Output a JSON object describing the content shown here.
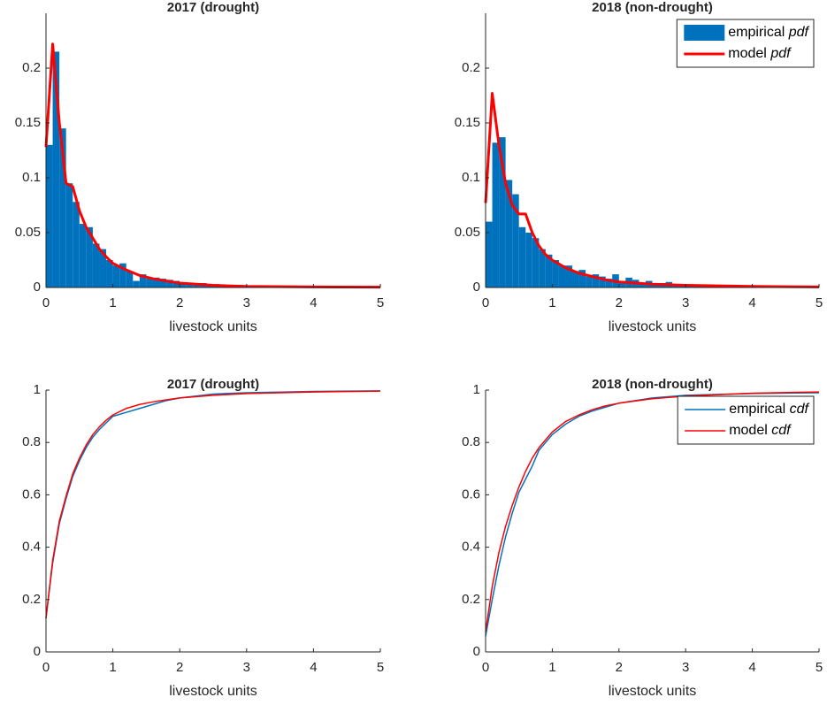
{
  "chart_data": [
    {
      "type": "histogram",
      "title": "2017 (drought)",
      "xlabel": "livestock units",
      "xlim": [
        0,
        5
      ],
      "xticks": [
        0,
        1,
        2,
        3,
        4,
        5
      ],
      "ylim": [
        0,
        0.25
      ],
      "yticks": [
        0,
        0.05,
        0.1,
        0.15,
        0.2
      ],
      "bins": [
        0,
        0.1,
        0.2,
        0.3,
        0.4,
        0.5,
        0.6,
        0.7,
        0.8,
        0.9,
        1,
        1.1,
        1.2,
        1.3,
        1.4,
        1.5,
        1.6,
        1.7,
        1.8,
        1.9,
        2,
        2.1,
        2.2,
        2.3,
        2.4,
        2.5,
        2.6,
        2.7,
        2.8,
        2.9,
        3,
        3.1,
        3.2,
        3.3,
        3.4,
        3.5,
        3.6,
        3.7,
        3.8,
        3.9,
        4,
        4.1,
        4.2,
        4.3,
        4.4,
        4.5,
        4.6,
        4.7,
        4.8,
        4.9,
        5
      ],
      "series": [
        {
          "type": "histogram",
          "color": "#0072bd",
          "values": [
            0.13,
            0.215,
            0.145,
            0.095,
            0.078,
            0.058,
            0.055,
            0.04,
            0.035,
            0.025,
            0.02,
            0.022,
            0.015,
            0.006,
            0.012,
            0.008,
            0.009,
            0.008,
            0.007,
            0.006,
            0.004,
            0.004,
            0.004,
            0.004,
            0.003,
            0.003,
            0.002,
            0.002,
            0.002,
            0.002,
            0.001,
            0.001,
            0.001,
            0.001,
            0.001,
            0.001,
            0.001,
            0.001,
            0.001,
            0.001,
            0.0005,
            0.0005,
            0.0005,
            0.0005,
            0.0005,
            0.0005,
            0.0005,
            0.0005,
            0.0005,
            0.0005
          ]
        },
        {
          "type": "line",
          "color": "#ff0000",
          "width": 3,
          "x": [
            0,
            0.1,
            0.2,
            0.3,
            0.4,
            0.5,
            0.6,
            0.7,
            0.8,
            0.9,
            1,
            1.2,
            1.4,
            1.6,
            1.8,
            2,
            2.5,
            3,
            4,
            5
          ],
          "values": [
            0.128,
            0.222,
            0.15,
            0.095,
            0.092,
            0.07,
            0.055,
            0.045,
            0.035,
            0.028,
            0.022,
            0.016,
            0.011,
            0.008,
            0.006,
            0.004,
            0.002,
            0.001,
            0.0005,
            0.0003
          ]
        }
      ]
    },
    {
      "type": "histogram",
      "title": "2018 (non-drought)",
      "xlabel": "livestock units",
      "legend": "northeast",
      "xlim": [
        0,
        5
      ],
      "xticks": [
        0,
        1,
        2,
        3,
        4,
        5
      ],
      "ylim": [
        0,
        0.25
      ],
      "yticks": [
        0,
        0.05,
        0.1,
        0.15,
        0.2
      ],
      "bins": [
        0,
        0.1,
        0.2,
        0.3,
        0.4,
        0.5,
        0.6,
        0.7,
        0.8,
        0.9,
        1,
        1.1,
        1.2,
        1.3,
        1.4,
        1.5,
        1.6,
        1.7,
        1.8,
        1.9,
        2,
        2.1,
        2.2,
        2.3,
        2.4,
        2.5,
        2.6,
        2.7,
        2.8,
        2.9,
        3,
        3.1,
        3.2,
        3.3,
        3.4,
        3.5,
        3.6,
        3.7,
        3.8,
        3.9,
        4,
        4.1,
        4.2,
        4.3,
        4.4,
        4.5,
        4.6,
        4.7,
        4.8,
        4.9,
        5
      ],
      "series": [
        {
          "type": "histogram",
          "name": "empirical pdf",
          "color": "#0072bd",
          "values": [
            0.06,
            0.132,
            0.137,
            0.098,
            0.085,
            0.055,
            0.05,
            0.045,
            0.035,
            0.03,
            0.025,
            0.02,
            0.02,
            0.015,
            0.016,
            0.01,
            0.012,
            0.01,
            0.008,
            0.012,
            0.006,
            0.009,
            0.007,
            0.004,
            0.006,
            0.003,
            0.004,
            0.005,
            0.002,
            0.002,
            0.002,
            0.001,
            0.002,
            0.001,
            0.001,
            0.001,
            0.001,
            0.001,
            0.001,
            0.001,
            0.0005,
            0.0005,
            0.0005,
            0.0005,
            0.0005,
            0.0005,
            0.0005,
            0.0005,
            0.0005,
            0.0005
          ]
        },
        {
          "type": "line",
          "name": "model pdf",
          "color": "#ff0000",
          "width": 3,
          "x": [
            0,
            0.1,
            0.2,
            0.3,
            0.4,
            0.5,
            0.6,
            0.7,
            0.8,
            0.9,
            1,
            1.2,
            1.4,
            1.6,
            1.8,
            2,
            2.5,
            3,
            4,
            5
          ],
          "values": [
            0.077,
            0.177,
            0.13,
            0.095,
            0.075,
            0.067,
            0.067,
            0.05,
            0.038,
            0.03,
            0.025,
            0.018,
            0.013,
            0.01,
            0.007,
            0.005,
            0.003,
            0.002,
            0.001,
            0.0005
          ]
        }
      ]
    },
    {
      "type": "line",
      "title": "2017 (drought)",
      "xlabel": "livestock units",
      "xlim": [
        0,
        5
      ],
      "xticks": [
        0,
        1,
        2,
        3,
        4,
        5
      ],
      "ylim": [
        0,
        1
      ],
      "yticks": [
        0,
        0.2,
        0.4,
        0.6,
        0.8,
        1
      ],
      "series": [
        {
          "type": "line",
          "color": "#0072bd",
          "width": 1.5,
          "x": [
            0,
            0.1,
            0.2,
            0.3,
            0.4,
            0.5,
            0.6,
            0.7,
            0.8,
            0.9,
            1,
            1.2,
            1.4,
            1.6,
            1.8,
            2,
            2.5,
            3,
            4,
            5
          ],
          "values": [
            0.13,
            0.34,
            0.49,
            0.585,
            0.67,
            0.73,
            0.78,
            0.82,
            0.85,
            0.875,
            0.9,
            0.915,
            0.93,
            0.945,
            0.96,
            0.97,
            0.985,
            0.99,
            0.995,
            0.997
          ]
        },
        {
          "type": "line",
          "color": "#ff0000",
          "width": 1.5,
          "x": [
            0,
            0.1,
            0.2,
            0.3,
            0.4,
            0.5,
            0.6,
            0.7,
            0.8,
            0.9,
            1,
            1.2,
            1.4,
            1.6,
            1.8,
            2,
            2.5,
            3,
            4,
            5
          ],
          "values": [
            0.128,
            0.35,
            0.5,
            0.595,
            0.68,
            0.74,
            0.79,
            0.83,
            0.86,
            0.885,
            0.905,
            0.93,
            0.945,
            0.955,
            0.963,
            0.97,
            0.98,
            0.987,
            0.993,
            0.996
          ]
        }
      ]
    },
    {
      "type": "line",
      "title": "2018 (non-drought)",
      "xlabel": "livestock units",
      "legend": "northeast",
      "xlim": [
        0,
        5
      ],
      "xticks": [
        0,
        1,
        2,
        3,
        4,
        5
      ],
      "ylim": [
        0,
        1
      ],
      "yticks": [
        0,
        0.2,
        0.4,
        0.6,
        0.8,
        1
      ],
      "series": [
        {
          "type": "line",
          "name": "empirical cdf",
          "color": "#0072bd",
          "width": 1.5,
          "x": [
            0,
            0.1,
            0.2,
            0.3,
            0.4,
            0.5,
            0.6,
            0.7,
            0.8,
            0.9,
            1,
            1.2,
            1.4,
            1.6,
            1.8,
            2,
            2.5,
            3,
            4,
            5
          ],
          "values": [
            0.06,
            0.2,
            0.33,
            0.44,
            0.53,
            0.61,
            0.66,
            0.71,
            0.77,
            0.8,
            0.83,
            0.87,
            0.9,
            0.92,
            0.935,
            0.95,
            0.97,
            0.98,
            0.987,
            0.99
          ]
        },
        {
          "type": "line",
          "name": "model cdf",
          "color": "#ff0000",
          "width": 1.5,
          "x": [
            0,
            0.1,
            0.2,
            0.3,
            0.4,
            0.5,
            0.6,
            0.7,
            0.8,
            0.9,
            1,
            1.2,
            1.4,
            1.6,
            1.8,
            2,
            2.5,
            3,
            4,
            5
          ],
          "values": [
            0.077,
            0.25,
            0.38,
            0.48,
            0.56,
            0.63,
            0.69,
            0.74,
            0.78,
            0.81,
            0.84,
            0.88,
            0.905,
            0.925,
            0.94,
            0.95,
            0.967,
            0.977,
            0.988,
            0.993
          ]
        }
      ]
    }
  ]
}
